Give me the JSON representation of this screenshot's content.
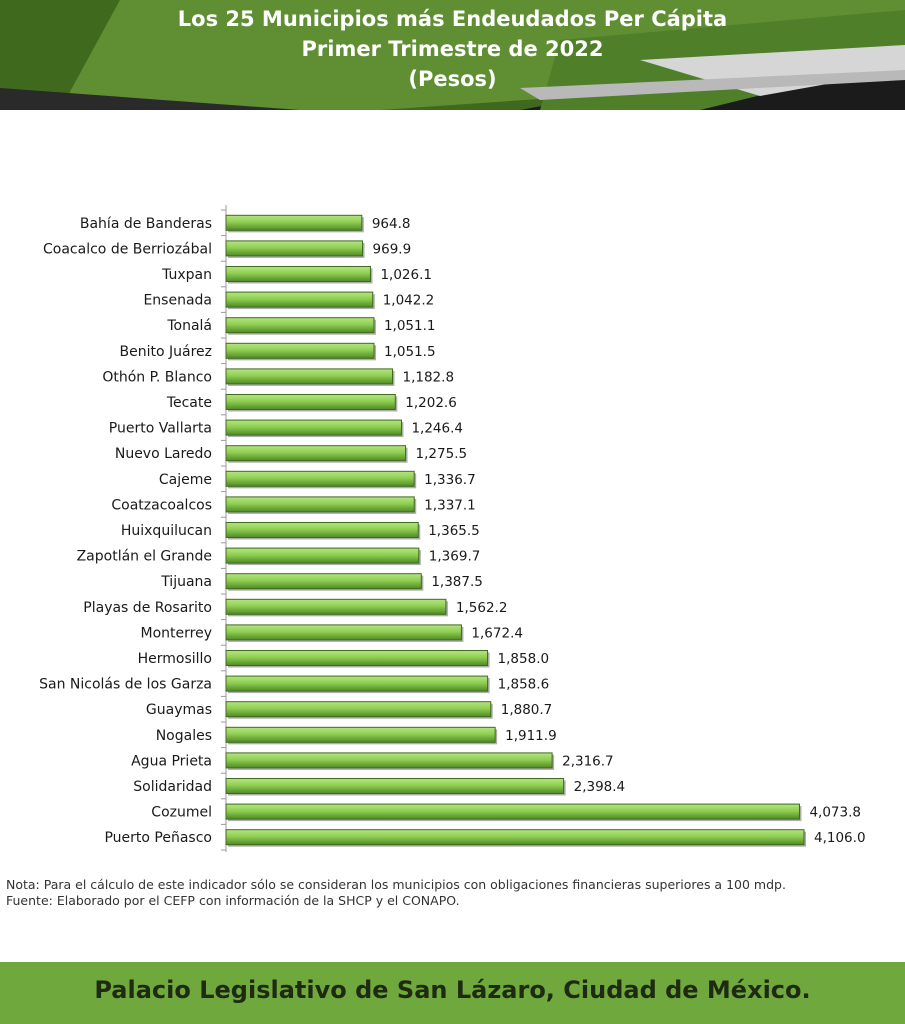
{
  "header": {
    "title_line1": "Los 25 Municipios más Endeudados Per Cápita",
    "title_line2": "Primer Trimestre de 2022",
    "title_line3": "(Pesos)"
  },
  "colors": {
    "header_dark": "#1b1b1b",
    "header_green": "#5f8f32",
    "header_light": "#c8c8c8",
    "bar_fill": "#8fcf52",
    "bar_edge": "#3f6a1e",
    "footer_green": "#6fa83c",
    "footer_text": "#1e2a12"
  },
  "chart_data": {
    "type": "bar",
    "orientation": "horizontal",
    "title": "Los 25 Municipios más Endeudados Per Cápita",
    "subtitle": "Primer Trimestre de 2022",
    "unit": "(Pesos)",
    "categories": [
      "Bahía de Banderas",
      "Coacalco de Berriozábal",
      "Tuxpan",
      "Ensenada",
      "Tonalá",
      "Benito Juárez",
      "Othón P. Blanco",
      "Tecate",
      "Puerto Vallarta",
      "Nuevo Laredo",
      "Cajeme",
      "Coatzacoalcos",
      "Huixquilucan",
      "Zapotlán el Grande",
      "Tijuana",
      "Playas de Rosarito",
      "Monterrey",
      "Hermosillo",
      "San Nicolás de los Garza",
      "Guaymas",
      "Nogales",
      "Agua Prieta",
      "Solidaridad",
      "Cozumel",
      "Puerto Peñasco"
    ],
    "values": [
      964.8,
      969.9,
      1026.1,
      1042.2,
      1051.1,
      1051.5,
      1182.8,
      1202.6,
      1246.4,
      1275.5,
      1336.7,
      1337.1,
      1365.5,
      1369.7,
      1387.5,
      1562.2,
      1672.4,
      1858.0,
      1858.6,
      1880.7,
      1911.9,
      2316.7,
      2398.4,
      4073.8,
      4106.0
    ],
    "value_labels": [
      "964.8",
      "969.9",
      "1,026.1",
      "1,042.2",
      "1,051.1",
      "1,051.5",
      "1,182.8",
      "1,202.6",
      "1,246.4",
      "1,275.5",
      "1,336.7",
      "1,337.1",
      "1,365.5",
      "1,369.7",
      "1,387.5",
      "1,562.2",
      "1,672.4",
      "1,858.0",
      "1,858.6",
      "1,880.7",
      "1,911.9",
      "2,316.7",
      "2,398.4",
      "4,073.8",
      "4,106.0"
    ],
    "xlim": [
      0,
      4106.0
    ],
    "grid": false,
    "legend": "none"
  },
  "notes": {
    "nota": "Nota: Para el cálculo de este indicador sólo se consideran los municipios con obligaciones financieras superiores a 100 mdp.",
    "fuente": "Fuente:  Elaborado por el CEFP con información de la SHCP y el CONAPO."
  },
  "footer": {
    "text": "Palacio Legislativo de San Lázaro, Ciudad de México."
  }
}
